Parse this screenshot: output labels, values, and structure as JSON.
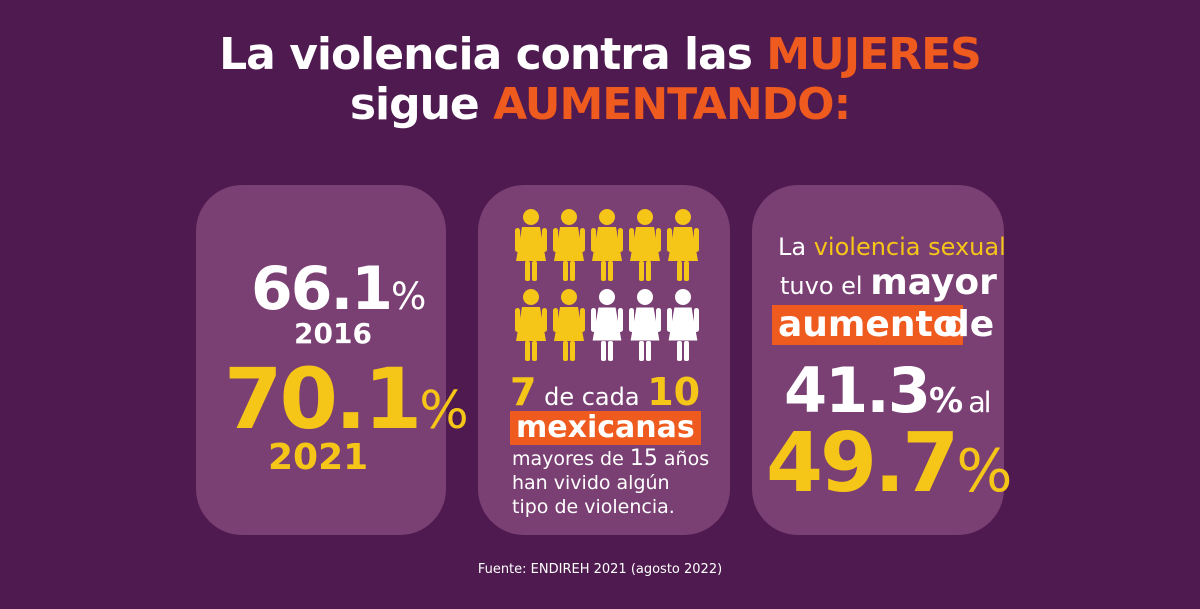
{
  "title": {
    "line1_a": "La violencia contra las ",
    "line1_b": "MUJERES",
    "line2_a": "sigue ",
    "line2_b": "AUMENTANDO:"
  },
  "card1": {
    "value_2016": "66.1",
    "unit": "%",
    "year_2016": "2016",
    "value_2021": "70.1",
    "year_2021": "2021"
  },
  "card2": {
    "people_total": 10,
    "people_highlighted": 7,
    "highlight_color": "#f5c518",
    "other_color": "#ffffff",
    "num_a": "7",
    "mid": " de cada ",
    "num_b": "10",
    "box": "mexicanas",
    "line3_a": "mayores de ",
    "line3_b": "15",
    "line3_c": " años",
    "line4": "han vivido algún",
    "line5": "tipo de violencia."
  },
  "card3": {
    "l1_a": "La ",
    "l1_b": "violencia sexual",
    "l2_a": "tuvo el ",
    "l2_b": "mayor",
    "box": "aumento",
    "de": "de",
    "pct1": "41.3",
    "unit": "%",
    "al": " al",
    "pct2": "49.7"
  },
  "source": "Fuente:  ENDIREH 2021 (agosto 2022)",
  "colors": {
    "background": "#4e1a4f",
    "card": "#7a3f73",
    "accent_orange": "#ef5a1e",
    "accent_yellow": "#f5c518"
  }
}
